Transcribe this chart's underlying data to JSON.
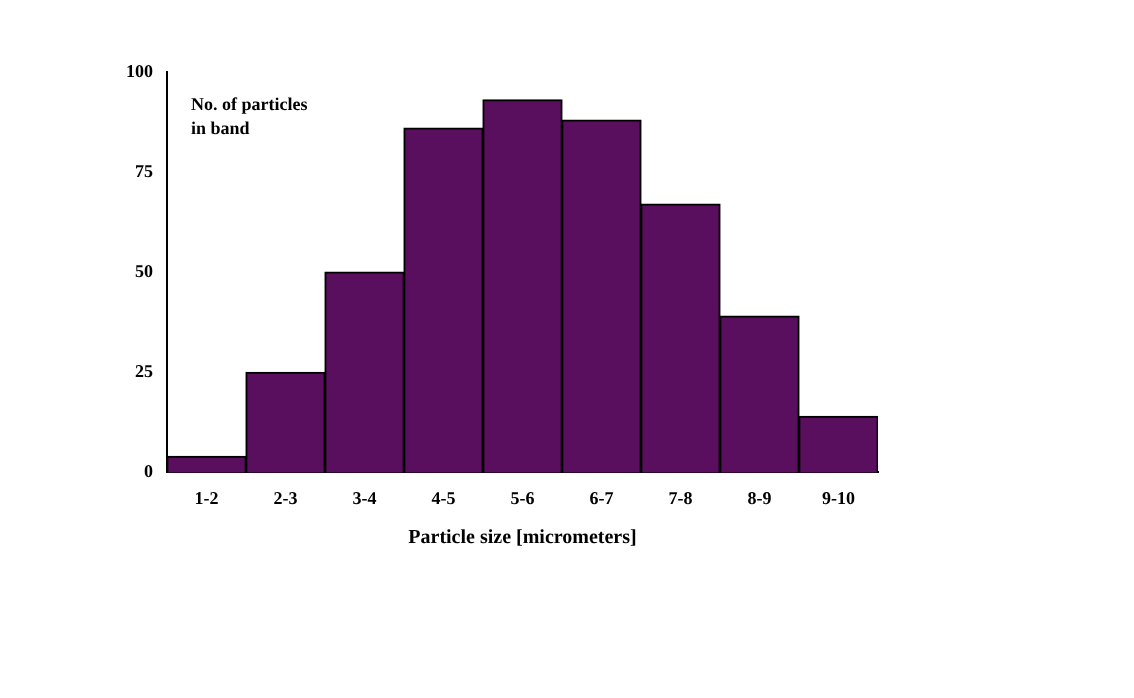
{
  "chart_data": {
    "type": "bar",
    "xlabel": "Particle size [micrometers]",
    "ylabel": "No. of particles in band",
    "categories": [
      "1-2",
      "2-3",
      "3-4",
      "4-5",
      "5-6",
      "6-7",
      "7-8",
      "8-9",
      "9-10"
    ],
    "values": [
      4,
      25,
      50,
      86,
      93,
      88,
      67,
      39,
      14
    ],
    "color": "#5a0f5e",
    "ylim": [
      0,
      100
    ],
    "yticks": [
      0,
      25,
      50,
      75,
      100
    ],
    "grid": false,
    "legend": false
  }
}
